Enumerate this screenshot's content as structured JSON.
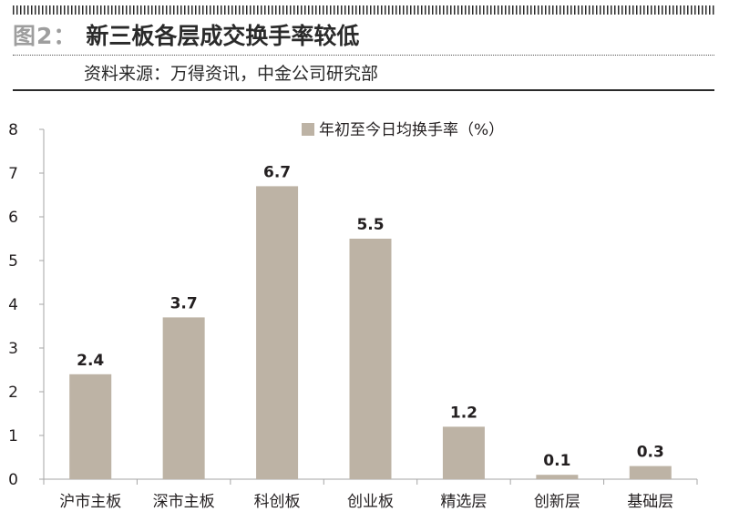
{
  "header": {
    "figure_number": "图2：",
    "title": "新三板各层成交换手率较低",
    "source": "资料来源：万得资讯，中金公司研究部"
  },
  "chart_data": {
    "type": "bar",
    "categories": [
      "沪市主板",
      "深市主板",
      "科创板",
      "创业板",
      "精选层",
      "创新层",
      "基础层"
    ],
    "series": [
      {
        "name": "年初至今日均换手率（%）",
        "values": [
          2.4,
          3.7,
          6.7,
          5.5,
          1.2,
          0.1,
          0.3
        ]
      }
    ],
    "data_labels": [
      "2.4",
      "3.7",
      "6.7",
      "5.5",
      "1.2",
      "0.1",
      "0.3"
    ],
    "ylim": [
      0,
      8
    ],
    "yticks": [
      "0",
      "1",
      "2",
      "3",
      "4",
      "5",
      "6",
      "7",
      "8"
    ],
    "grid": false,
    "legend_position": "top-center",
    "colors": {
      "bar": "#bdb3a5",
      "axis": "#a6a6a6",
      "text": "#231f20"
    }
  }
}
